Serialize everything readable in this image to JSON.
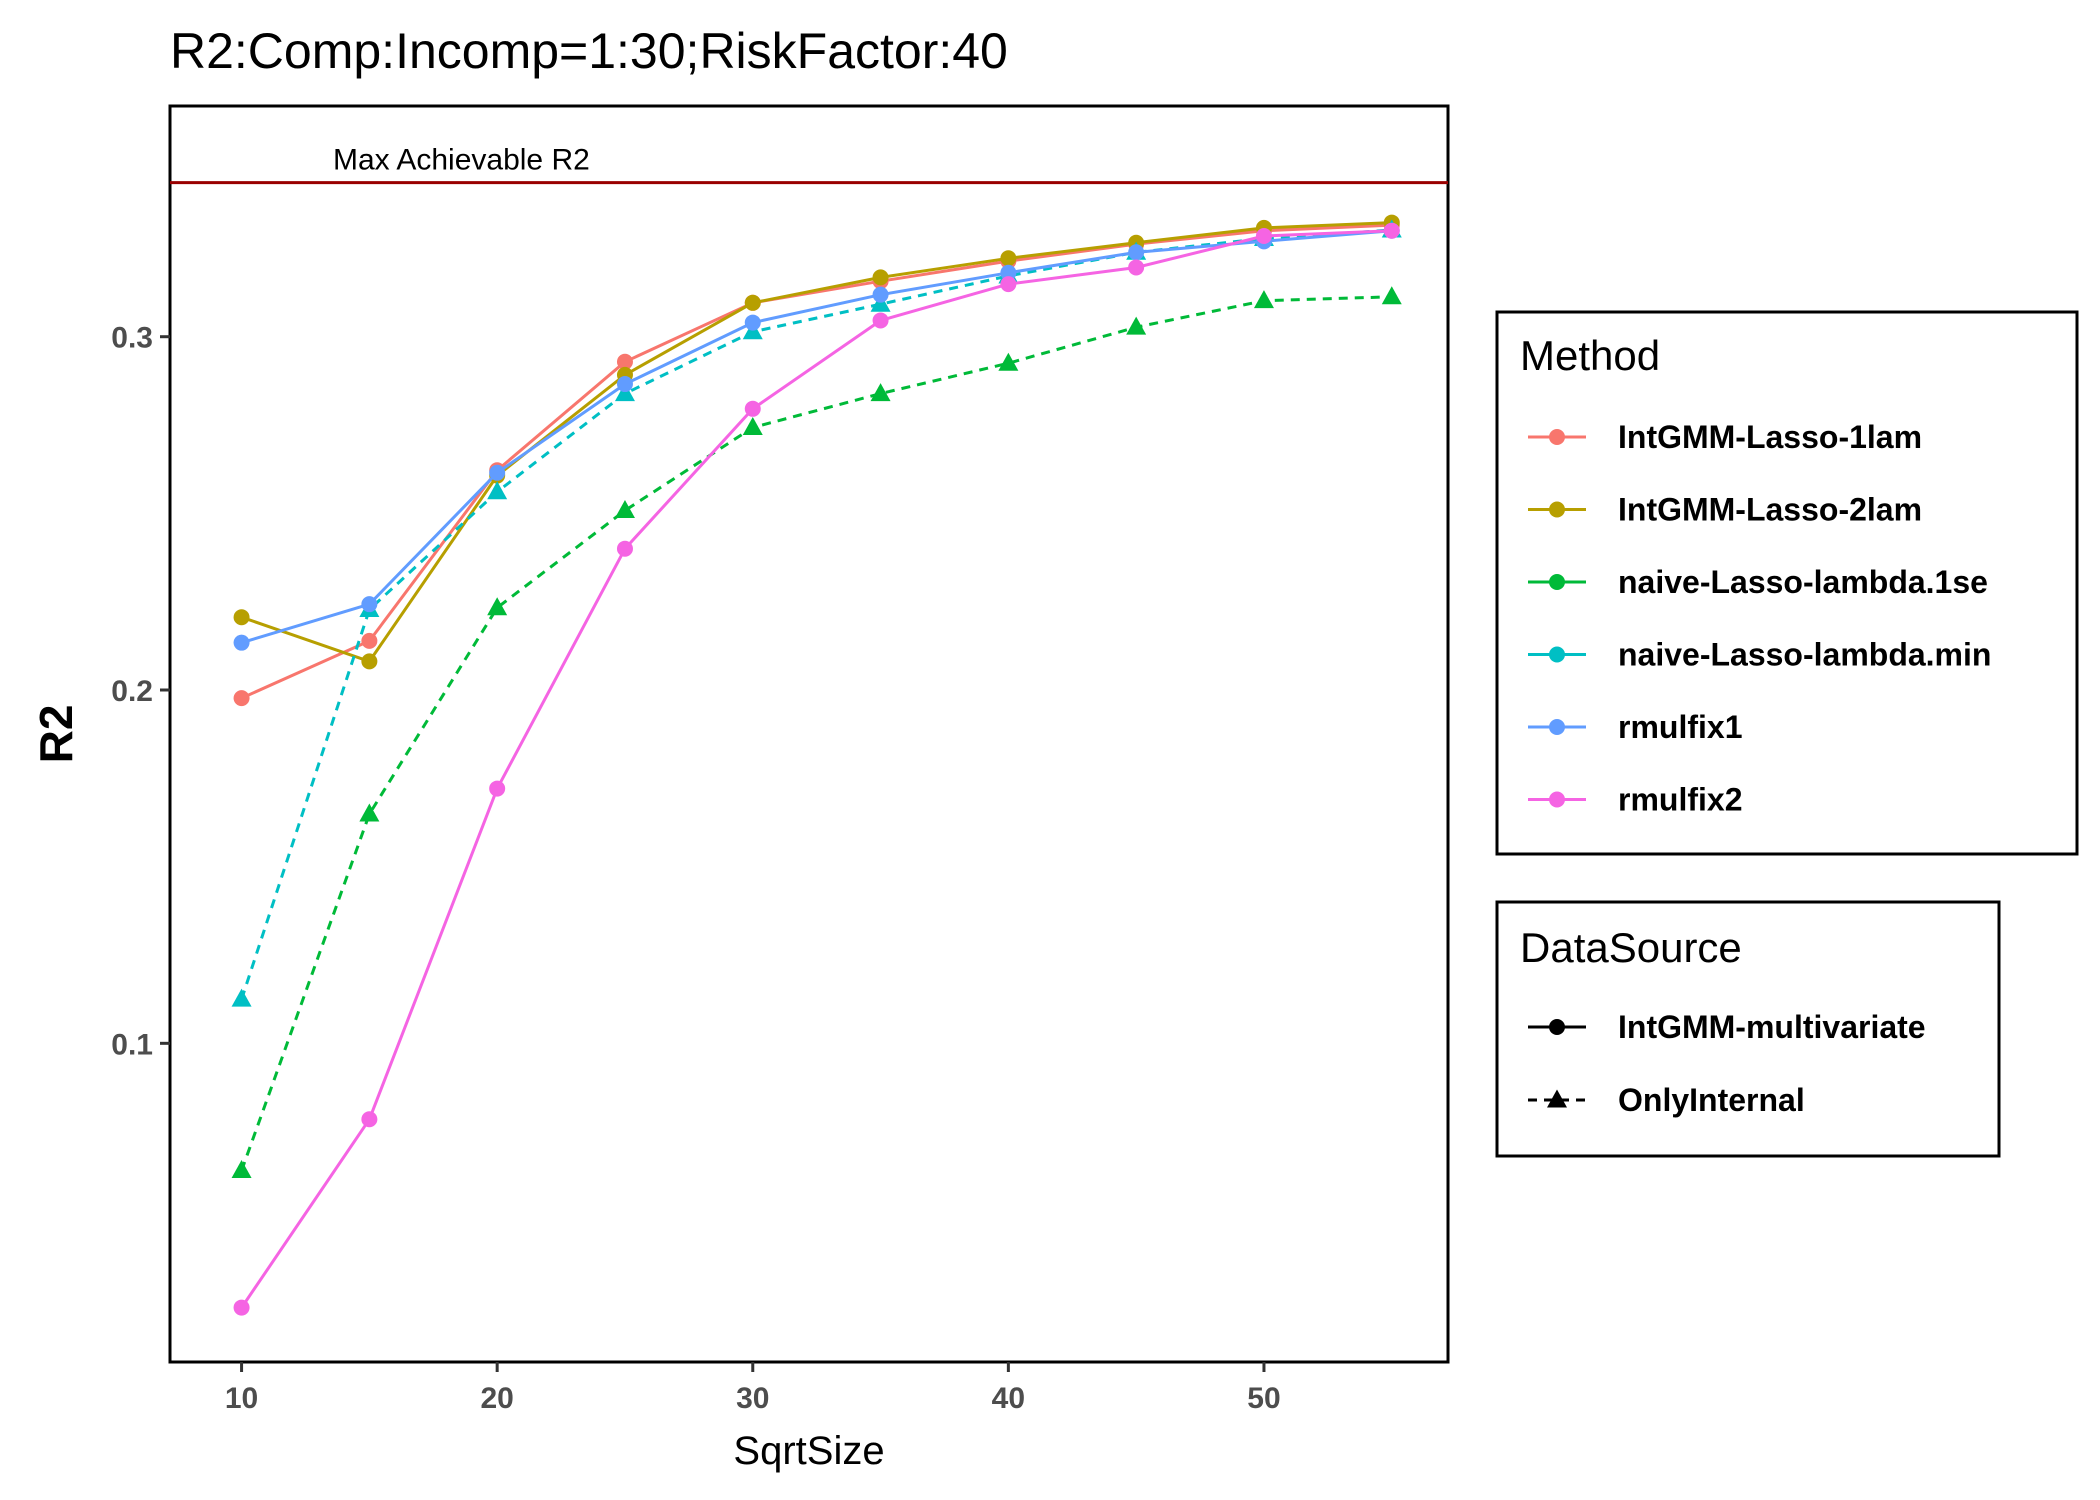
{
  "chart_data": {
    "type": "line",
    "title": "R2:Comp:Incomp=1:30;RiskFactor:40",
    "xlabel": "SqrtSize",
    "ylabel": "R2",
    "x": [
      10,
      15,
      20,
      25,
      30,
      35,
      40,
      45,
      50,
      55
    ],
    "xlim": [
      7.2,
      57.2
    ],
    "ylim": [
      0.0098,
      0.3653
    ],
    "xticks": [
      "10",
      "20",
      "30",
      "40",
      "50"
    ],
    "yticks": [
      "0.1",
      "0.2",
      "0.3"
    ],
    "grid": false,
    "reference_line": {
      "y": 0.3436,
      "label": "Max Achievable R2",
      "color": "#990000"
    },
    "series": [
      {
        "name": "IntGMM-Lasso-1lam",
        "datasource": "IntGMM-multivariate",
        "color": "#F8766D",
        "values": [
          0.1977,
          0.2139,
          0.2622,
          0.2929,
          0.3096,
          0.3157,
          0.3214,
          0.3262,
          0.33,
          0.3316
        ]
      },
      {
        "name": "IntGMM-Lasso-2lam",
        "datasource": "IntGMM-multivariate",
        "color": "#B79F00",
        "values": [
          0.2206,
          0.2081,
          0.2607,
          0.2892,
          0.3096,
          0.3168,
          0.3222,
          0.3266,
          0.3308,
          0.3323
        ]
      },
      {
        "name": "naive-Lasso-lambda.1se",
        "datasource": "OnlyInternal",
        "color": "#00BA38",
        "values": [
          0.064,
          0.1649,
          0.2233,
          0.2508,
          0.2743,
          0.2839,
          0.2925,
          0.3027,
          0.3102,
          0.3113
        ]
      },
      {
        "name": "naive-Lasso-lambda.min",
        "datasource": "OnlyInternal",
        "color": "#00BFC4",
        "values": [
          0.1125,
          0.2228,
          0.2561,
          0.2839,
          0.3014,
          0.3092,
          0.3172,
          0.3239,
          0.3278,
          0.3302
        ]
      },
      {
        "name": "rmulfix1",
        "datasource": "IntGMM-multivariate",
        "color": "#619CFF",
        "values": [
          0.2134,
          0.2243,
          0.2615,
          0.2866,
          0.304,
          0.3119,
          0.3181,
          0.3239,
          0.327,
          0.33
        ]
      },
      {
        "name": "rmulfix2",
        "datasource": "IntGMM-multivariate",
        "color": "#F564E3",
        "values": [
          0.0252,
          0.0785,
          0.1721,
          0.24,
          0.2796,
          0.3046,
          0.3149,
          0.3196,
          0.3285,
          0.33
        ]
      }
    ]
  },
  "legend_method": {
    "title": "Method",
    "items": [
      {
        "label": "IntGMM-Lasso-1lam",
        "color": "#F8766D"
      },
      {
        "label": "IntGMM-Lasso-2lam",
        "color": "#B79F00"
      },
      {
        "label": "naive-Lasso-lambda.1se",
        "color": "#00BA38"
      },
      {
        "label": "naive-Lasso-lambda.min",
        "color": "#00BFC4"
      },
      {
        "label": "rmulfix1",
        "color": "#619CFF"
      },
      {
        "label": "rmulfix2",
        "color": "#F564E3"
      }
    ]
  },
  "legend_datasource": {
    "title": "DataSource",
    "items": [
      {
        "label": "IntGMM-multivariate",
        "line": "solid",
        "shape": "circle"
      },
      {
        "label": "OnlyInternal",
        "line": "dashed",
        "shape": "triangle"
      }
    ]
  }
}
